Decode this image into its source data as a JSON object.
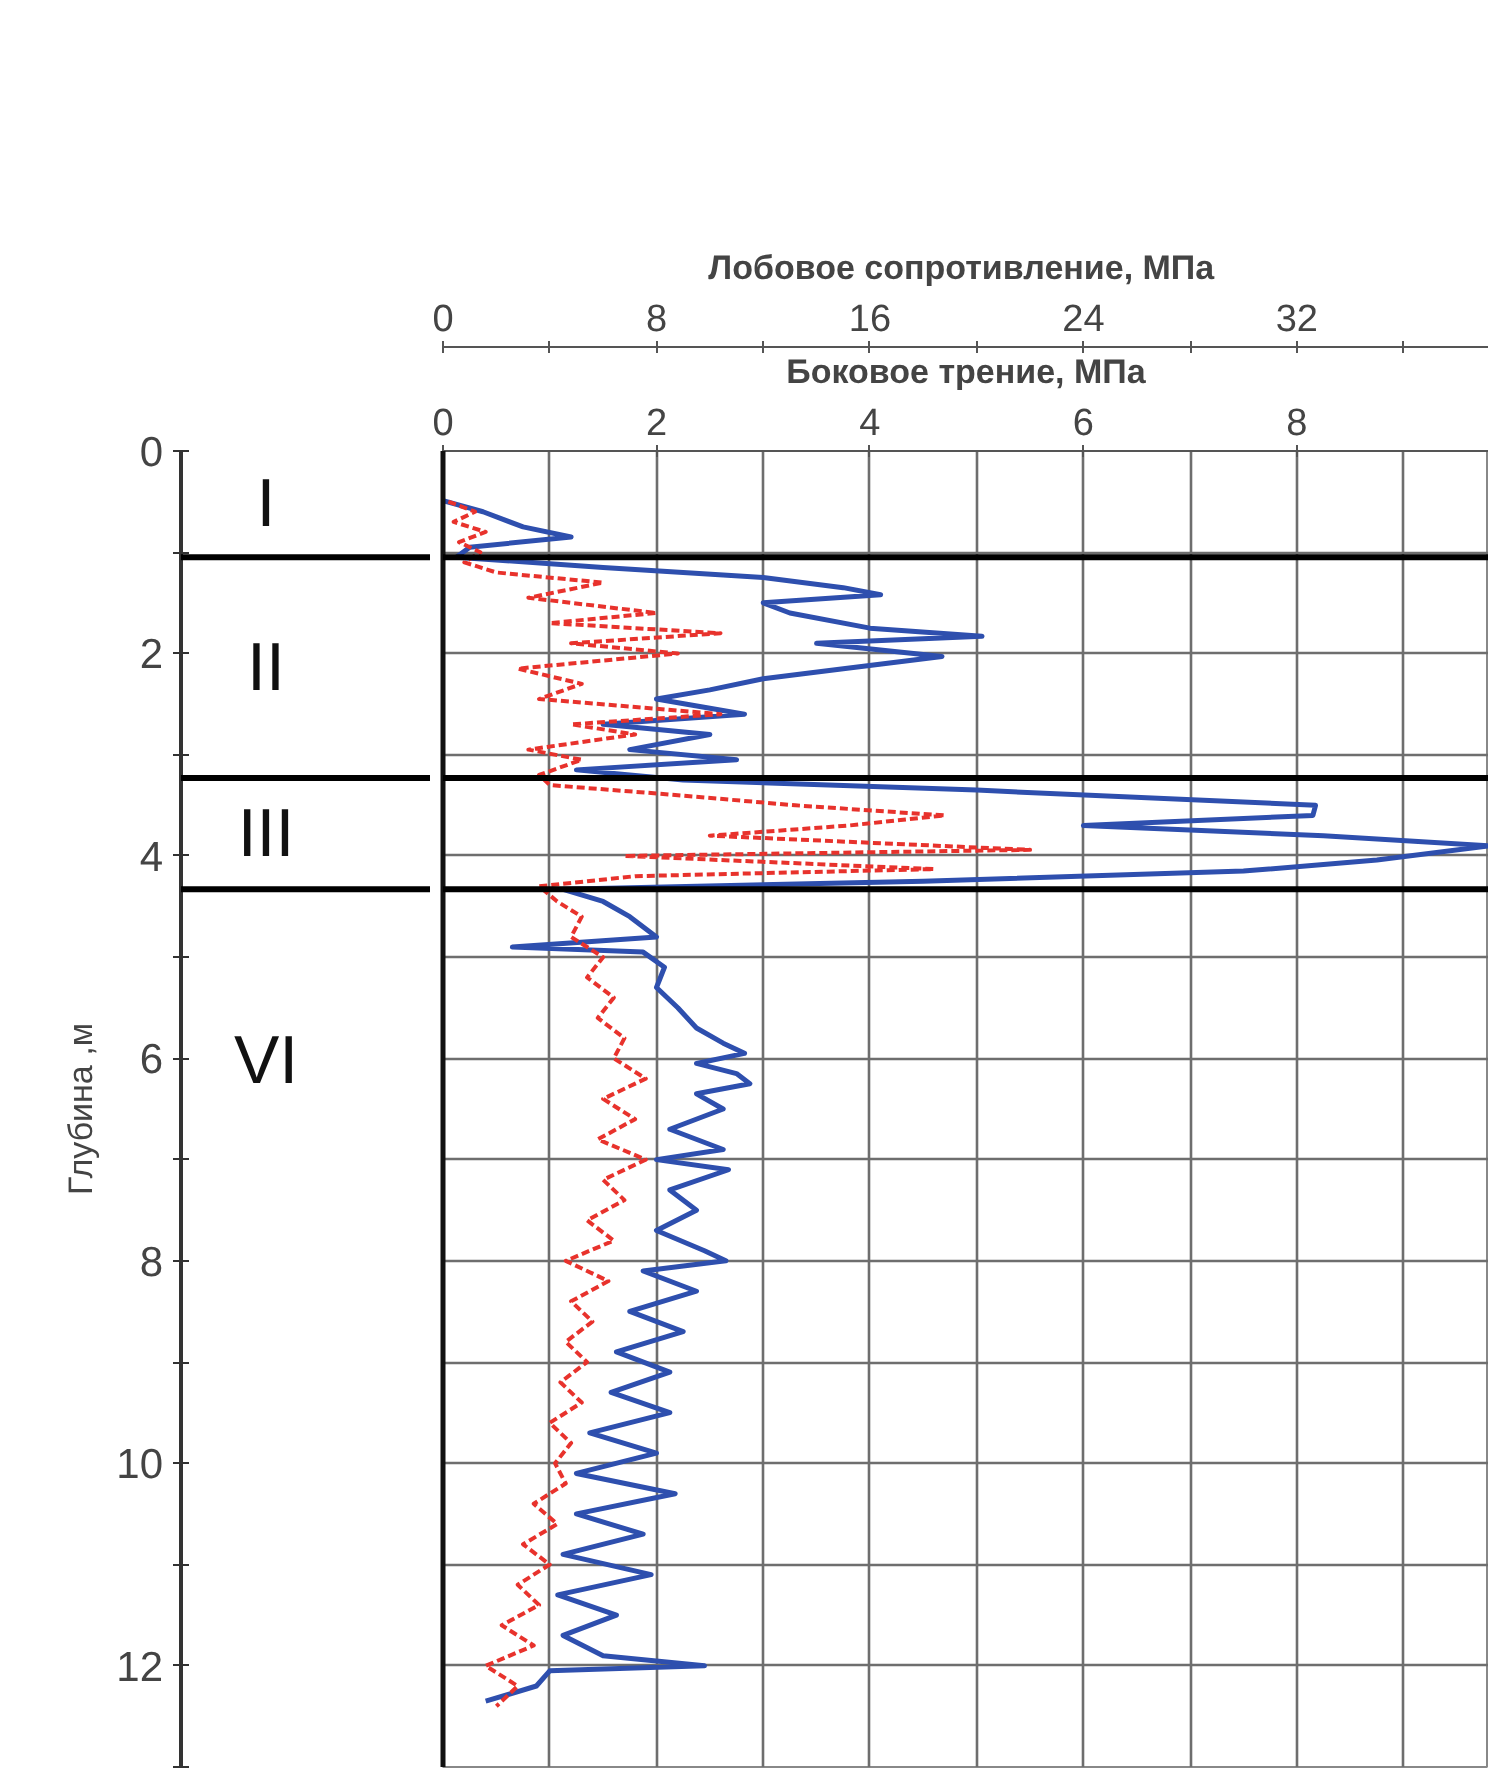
{
  "chart_data": {
    "type": "line",
    "orientation": "horizontal",
    "xlabel": "Лобовое сопротивление,  МПа",
    "x2label": "Боковое трение, МПа",
    "ylabel": "Глубина ,м",
    "xlim": [
      0,
      39.2
    ],
    "xticks": [
      0,
      {
        "value": 4,
        "label": null
      },
      8,
      {
        "value": 12,
        "label": null
      },
      16,
      {
        "value": 20,
        "label": null
      },
      24,
      {
        "value": 28,
        "label": null
      },
      32,
      {
        "value": 36,
        "label": null
      }
    ],
    "x2lim": [
      0,
      9.8
    ],
    "x2ticks": [
      0,
      2,
      4,
      6,
      8
    ],
    "ylim": [
      13,
      0
    ],
    "yticks": [
      0,
      {
        "value": 1,
        "label": null
      },
      2,
      {
        "value": 3,
        "label": null
      },
      4,
      {
        "value": 5,
        "label": null
      },
      6,
      {
        "value": 7,
        "label": null
      },
      8,
      {
        "value": 9,
        "label": null
      },
      10,
      {
        "value": 11,
        "label": null
      },
      12,
      {
        "value": 13,
        "label": null
      }
    ],
    "grid": true,
    "ref_lines": [
      {
        "axis": "y",
        "value": 1.05
      },
      {
        "axis": "y",
        "value": 3.23
      },
      {
        "axis": "y",
        "value": 4.33
      }
    ],
    "annotations": [
      "I",
      "II",
      "III",
      "VI"
    ],
    "series": [
      {
        "color": "#2e4fae",
        "line_style": "solid",
        "x": [
          0.49,
          0.6,
          0.75,
          0.85,
          0.95,
          1.05,
          1.15,
          1.25,
          1.35,
          1.42,
          1.5,
          1.6,
          1.75,
          1.83,
          1.9,
          2.03,
          2.15,
          2.25,
          2.36,
          2.45,
          2.6,
          2.7,
          2.8,
          2.95,
          3.05,
          3.15,
          3.25,
          3.35,
          3.5,
          3.6,
          3.7,
          3.8,
          3.9,
          4.04,
          4.15,
          4.25,
          4.33,
          4.45,
          4.6,
          4.8,
          4.9,
          4.95,
          5.1,
          5.3,
          5.5,
          5.7,
          5.85,
          5.95,
          6.05,
          6.15,
          6.25,
          6.35,
          6.5,
          6.7,
          6.9,
          7.0,
          7.1,
          7.3,
          7.5,
          7.7,
          7.9,
          8.0,
          8.1,
          8.3,
          8.5,
          8.7,
          8.9,
          9.1,
          9.3,
          9.5,
          9.7,
          9.9,
          10.1,
          10.3,
          10.5,
          10.7,
          10.9,
          11.1,
          11.3,
          11.5,
          11.7,
          11.9,
          12.0,
          12.05,
          12.2,
          12.35
        ],
        "values": [
          0,
          1.5,
          3,
          4.8,
          1,
          0.5,
          6,
          12,
          15,
          16.4,
          12,
          13,
          16,
          20.2,
          14,
          18.7,
          15,
          12,
          10,
          8,
          11.3,
          6,
          10,
          7,
          11,
          5,
          9,
          20,
          32.7,
          32.6,
          24,
          33,
          39.2,
          35,
          30,
          18,
          4.5,
          6,
          7,
          8,
          2.6,
          7.5,
          8.3,
          8,
          8.8,
          9.5,
          10.5,
          11.3,
          9.5,
          11,
          11.5,
          9.5,
          10.5,
          8.5,
          10.5,
          8,
          10.7,
          8.5,
          9.5,
          8,
          9.8,
          10.6,
          7.5,
          9.5,
          7,
          9,
          6.5,
          8.5,
          6.3,
          8.5,
          5.5,
          8,
          5,
          8.7,
          5,
          7.5,
          4.5,
          7.8,
          4.3,
          6.5,
          4.5,
          6,
          9.8,
          4,
          3.5,
          1.6
        ]
      },
      {
        "color": "#e8322c",
        "line_style": "dashed",
        "axis": "x2",
        "x": [
          0.5,
          0.6,
          0.7,
          0.8,
          0.9,
          1.0,
          1.1,
          1.2,
          1.3,
          1.45,
          1.6,
          1.7,
          1.8,
          1.9,
          2.0,
          2.15,
          2.3,
          2.45,
          2.6,
          2.7,
          2.8,
          2.95,
          3.05,
          3.2,
          3.3,
          3.4,
          3.5,
          3.6,
          3.7,
          3.8,
          3.94,
          4.0,
          4.13,
          4.2,
          4.3,
          4.45,
          4.6,
          4.8,
          5.0,
          5.2,
          5.4,
          5.6,
          5.8,
          6.0,
          6.2,
          6.4,
          6.6,
          6.8,
          7.0,
          7.2,
          7.4,
          7.6,
          7.8,
          8.0,
          8.2,
          8.4,
          8.6,
          8.8,
          9.0,
          9.2,
          9.4,
          9.6,
          9.8,
          10.0,
          10.2,
          10.4,
          10.6,
          10.8,
          11.0,
          11.2,
          11.4,
          11.6,
          11.8,
          12.0,
          12.2,
          12.4
        ],
        "values": [
          0.05,
          0.3,
          0.1,
          0.4,
          0.15,
          0.35,
          0.2,
          0.5,
          1.5,
          0.8,
          2.0,
          1.0,
          2.6,
          1.2,
          2.2,
          0.7,
          1.3,
          0.9,
          2.6,
          1.2,
          1.8,
          0.8,
          1.3,
          0.9,
          1.0,
          2.2,
          3.3,
          4.7,
          3.8,
          2.5,
          5.5,
          1.7,
          4.6,
          1.8,
          0.9,
          1.07,
          1.3,
          1.2,
          1.5,
          1.35,
          1.6,
          1.45,
          1.7,
          1.6,
          1.9,
          1.5,
          1.8,
          1.45,
          1.9,
          1.5,
          1.7,
          1.35,
          1.6,
          1.15,
          1.55,
          1.2,
          1.4,
          1.15,
          1.35,
          1.1,
          1.3,
          1.0,
          1.2,
          1.05,
          1.15,
          0.85,
          1.07,
          0.75,
          1.0,
          0.7,
          0.9,
          0.55,
          0.85,
          0.4,
          0.7,
          0.5
        ]
      }
    ]
  }
}
